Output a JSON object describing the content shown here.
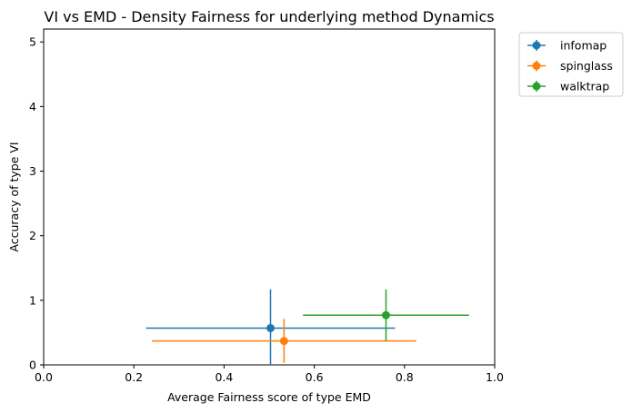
{
  "chart_data": {
    "type": "scatter",
    "title": "VI vs EMD - Density Fairness for underlying method Dynamics",
    "xlabel": "Average Fairness score of type EMD",
    "ylabel": "Accuracy of type VI",
    "xlim": [
      0.0,
      1.0
    ],
    "ylim": [
      0,
      5.2
    ],
    "xticks": [
      "0.0",
      "0.2",
      "0.4",
      "0.6",
      "0.8",
      "1.0"
    ],
    "xtick_values": [
      0.0,
      0.2,
      0.4,
      0.6,
      0.8,
      1.0
    ],
    "yticks": [
      "0",
      "1",
      "2",
      "3",
      "4",
      "5"
    ],
    "ytick_values": [
      0,
      1,
      2,
      3,
      4,
      5
    ],
    "grid": false,
    "legend_position": "outside-top-right",
    "series": [
      {
        "name": "infomap",
        "color": "#1f77b4",
        "x": 0.503,
        "y": 0.57,
        "xerr": 0.276,
        "yerr": 0.6
      },
      {
        "name": "spinglass",
        "color": "#ff7f0e",
        "x": 0.533,
        "y": 0.37,
        "xerr": 0.293,
        "yerr": 0.34
      },
      {
        "name": "walktrap",
        "color": "#2ca02c",
        "x": 0.759,
        "y": 0.77,
        "xerr": 0.184,
        "yerr": 0.4
      }
    ]
  }
}
